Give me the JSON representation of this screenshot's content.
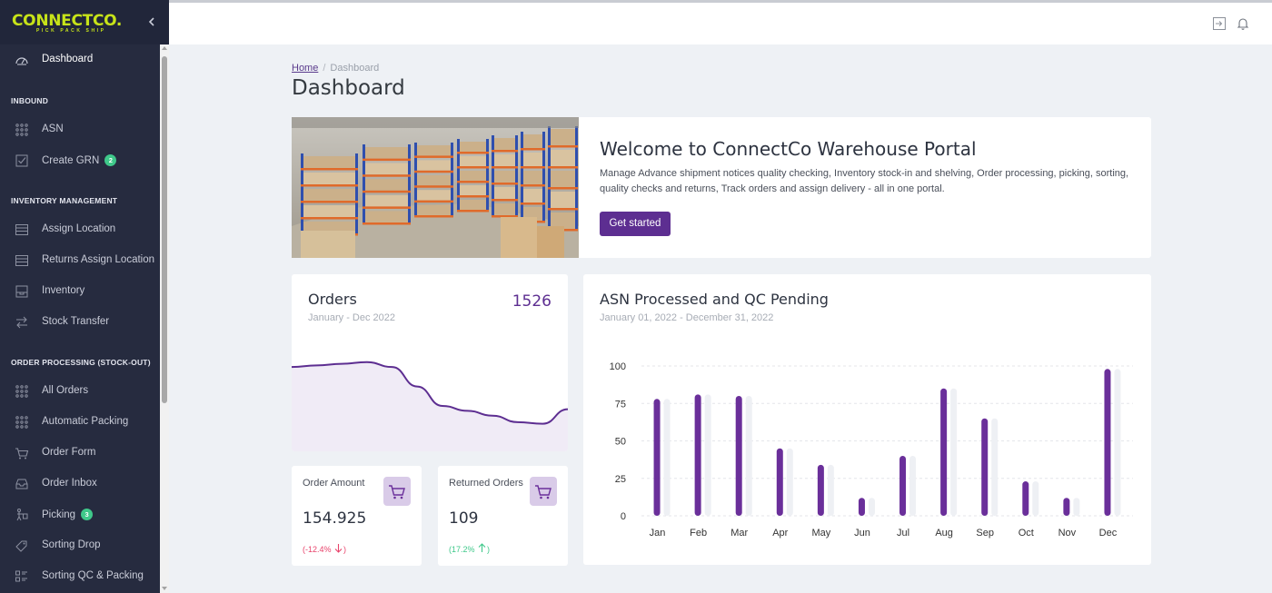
{
  "sidebar": {
    "logo": "CONNECTCO.",
    "logo_tagline": "PICK PACK SHIP",
    "items": [
      {
        "type": "item",
        "label": "Dashboard",
        "icon": "gauge-icon",
        "active": true
      },
      {
        "type": "section",
        "label": "INBOUND"
      },
      {
        "type": "item",
        "label": "ASN",
        "icon": "dots-grid-icon"
      },
      {
        "type": "item",
        "label": "Create GRN",
        "icon": "checklist-icon",
        "badge": "2"
      },
      {
        "type": "section",
        "label": "INVENTORY MANAGEMENT"
      },
      {
        "type": "item",
        "label": "Assign Location",
        "icon": "list-icon"
      },
      {
        "type": "item",
        "label": "Returns Assign Location",
        "icon": "list-icon"
      },
      {
        "type": "item",
        "label": "Inventory",
        "icon": "inventory-icon"
      },
      {
        "type": "item",
        "label": "Stock Transfer",
        "icon": "transfer-icon"
      },
      {
        "type": "section",
        "label": "ORDER PROCESSING (STOCK-OUT)"
      },
      {
        "type": "item",
        "label": "All Orders",
        "icon": "dots-grid-icon"
      },
      {
        "type": "item",
        "label": "Automatic Packing",
        "icon": "dots-grid-icon"
      },
      {
        "type": "item",
        "label": "Order Form",
        "icon": "cart-icon"
      },
      {
        "type": "item",
        "label": "Order Inbox",
        "icon": "inbox-icon"
      },
      {
        "type": "item",
        "label": "Picking",
        "icon": "picking-icon",
        "badge": "3"
      },
      {
        "type": "item",
        "label": "Sorting Drop",
        "icon": "tag-icon"
      },
      {
        "type": "item",
        "label": "Sorting QC & Packing",
        "icon": "sorting-icon"
      }
    ]
  },
  "breadcrumb": {
    "home": "Home",
    "current": "Dashboard"
  },
  "page_title": "Dashboard",
  "welcome": {
    "title": "Welcome to ConnectCo Warehouse Portal",
    "text": "Manage Advance shipment notices quality checking, Inventory stock-in and shelving, Order processing, picking, sorting, quality checks and returns, Track orders and assign delivery - all in one portal.",
    "button": "Get started"
  },
  "orders": {
    "title": "Orders",
    "period": "January - Dec 2022",
    "total": "1526"
  },
  "order_amount": {
    "label": "Order Amount",
    "value": "154.925",
    "change": "(-12.4%",
    "change_close": ")",
    "trend": "down",
    "color": "#e8436b"
  },
  "returned_orders": {
    "label": "Returned Orders",
    "value": "109",
    "change": "(17.2%",
    "change_close": ")",
    "trend": "up",
    "color": "#3fc88a"
  },
  "colors": {
    "accent": "#5d2e91",
    "sidebar": "#262b3f",
    "bar_primary": "#6a2f9a",
    "bar_secondary": "#eef0f4"
  },
  "chart_data": [
    {
      "type": "area",
      "title": "Orders",
      "subtitle": "January - Dec 2022",
      "x": [
        0,
        1,
        2,
        3,
        4,
        5,
        6,
        7,
        8,
        9,
        10,
        11
      ],
      "values": [
        52,
        53,
        54,
        55,
        52,
        40,
        28,
        25,
        22,
        18,
        17,
        26
      ],
      "ylim": [
        0,
        70
      ],
      "grid": false,
      "axes_visible": false
    },
    {
      "type": "bar",
      "title": "ASN Processed and QC Pending",
      "subtitle": "January 01, 2022 - December 31, 2022",
      "categories": [
        "Jan",
        "Feb",
        "Mar",
        "Apr",
        "May",
        "Jun",
        "Jul",
        "Aug",
        "Sep",
        "Oct",
        "Nov",
        "Dec"
      ],
      "series": [
        {
          "values": [
            78,
            81,
            80,
            45,
            34,
            12,
            40,
            85,
            65,
            23,
            12,
            98
          ]
        },
        {
          "values": [
            78,
            81,
            80,
            45,
            34,
            12,
            40,
            85,
            65,
            23,
            12,
            98
          ]
        }
      ],
      "yticks": [
        "0",
        "25",
        "50",
        "75",
        "100"
      ],
      "ylim": [
        0,
        100
      ],
      "grid": true
    }
  ]
}
